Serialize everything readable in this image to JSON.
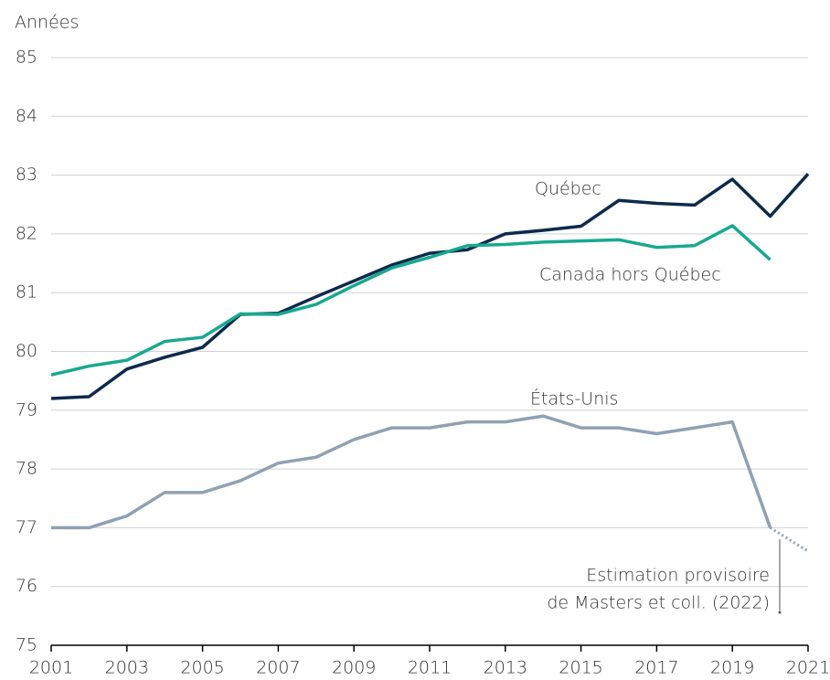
{
  "chart_data": {
    "type": "line",
    "ylabel": "Années",
    "x": [
      2001,
      2002,
      2003,
      2004,
      2005,
      2006,
      2007,
      2008,
      2009,
      2010,
      2011,
      2012,
      2013,
      2014,
      2015,
      2016,
      2017,
      2018,
      2019,
      2020,
      2021
    ],
    "series": [
      {
        "name": "Québec",
        "color": "#0d2a4e",
        "values": [
          79.2,
          79.23,
          79.7,
          79.9,
          80.07,
          80.63,
          80.65,
          80.93,
          81.2,
          81.47,
          81.67,
          81.73,
          82.0,
          82.06,
          82.13,
          82.57,
          82.52,
          82.49,
          82.93,
          82.3,
          83.02
        ]
      },
      {
        "name": "Canada hors Québec",
        "color": "#17a98f",
        "values": [
          79.6,
          79.75,
          79.85,
          80.17,
          80.24,
          80.64,
          80.63,
          80.8,
          81.12,
          81.42,
          81.6,
          81.8,
          81.82,
          81.86,
          81.88,
          81.9,
          81.77,
          81.8,
          82.14,
          81.56,
          null
        ]
      },
      {
        "name": "États-Unis",
        "color": "#8fa1b3",
        "values": [
          77.0,
          77.0,
          77.2,
          77.6,
          77.6,
          77.8,
          78.1,
          78.2,
          78.5,
          78.7,
          78.7,
          78.8,
          78.8,
          78.9,
          78.7,
          78.7,
          78.6,
          78.7,
          78.8,
          77.0,
          76.6
        ],
        "dashed_after": 2020
      }
    ],
    "annotation": [
      "Estimation provisoire",
      "de Masters et coll. (2022)"
    ],
    "xlim": [
      2001,
      2021
    ],
    "xticks": [
      2001,
      2003,
      2005,
      2007,
      2009,
      2011,
      2013,
      2015,
      2017,
      2019,
      2021
    ],
    "ylim": [
      75,
      85
    ],
    "yticks": [
      75,
      76,
      77,
      78,
      79,
      80,
      81,
      82,
      83,
      84,
      85
    ],
    "grid": true
  }
}
